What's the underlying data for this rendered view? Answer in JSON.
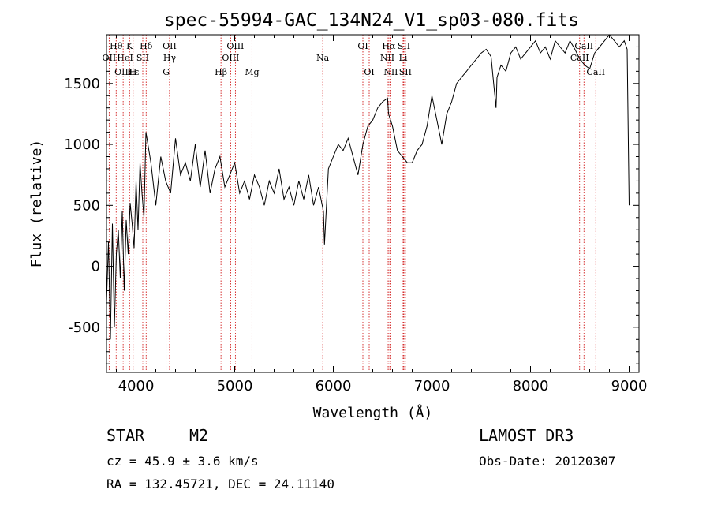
{
  "chart_data": {
    "type": "line",
    "title": "spec-55994-GAC_134N24_V1_sp03-080.fits",
    "xlabel": "Wavelength (Å)",
    "ylabel": "Flux (relative)",
    "xlim": [
      3700,
      9100
    ],
    "ylim": [
      -870,
      1900
    ],
    "xticks": [
      4000,
      5000,
      6000,
      7000,
      8000,
      9000
    ],
    "yticks": [
      -500,
      0,
      500,
      1000,
      1500
    ],
    "series": [
      {
        "name": "flux",
        "x": [
          3700,
          3720,
          3740,
          3760,
          3780,
          3800,
          3820,
          3840,
          3860,
          3880,
          3900,
          3920,
          3940,
          3960,
          3980,
          4000,
          4020,
          4040,
          4060,
          4080,
          4100,
          4150,
          4200,
          4250,
          4300,
          4350,
          4400,
          4450,
          4500,
          4550,
          4600,
          4650,
          4700,
          4750,
          4800,
          4850,
          4900,
          4950,
          5000,
          5050,
          5100,
          5150,
          5200,
          5250,
          5300,
          5350,
          5400,
          5450,
          5500,
          5550,
          5600,
          5650,
          5700,
          5750,
          5800,
          5850,
          5900,
          5910,
          5950,
          6000,
          6050,
          6100,
          6150,
          6200,
          6250,
          6300,
          6350,
          6400,
          6450,
          6500,
          6550,
          6560,
          6600,
          6650,
          6700,
          6750,
          6800,
          6850,
          6900,
          6950,
          7000,
          7050,
          7100,
          7150,
          7200,
          7250,
          7300,
          7350,
          7400,
          7450,
          7500,
          7550,
          7600,
          7620,
          7650,
          7660,
          7700,
          7750,
          7800,
          7850,
          7900,
          7950,
          8000,
          8050,
          8100,
          8150,
          8200,
          8250,
          8300,
          8350,
          8400,
          8450,
          8500,
          8550,
          8600,
          8650,
          8700,
          8750,
          8800,
          8850,
          8900,
          8950,
          8980,
          9000
        ],
        "values": [
          -300,
          200,
          -600,
          350,
          -500,
          100,
          300,
          -100,
          450,
          -200,
          380,
          100,
          520,
          350,
          150,
          700,
          300,
          850,
          600,
          400,
          1100,
          850,
          500,
          900,
          700,
          600,
          1050,
          750,
          850,
          700,
          1000,
          650,
          950,
          600,
          800,
          900,
          650,
          750,
          850,
          600,
          700,
          550,
          750,
          650,
          500,
          700,
          600,
          800,
          550,
          650,
          500,
          700,
          550,
          750,
          500,
          650,
          450,
          180,
          800,
          900,
          1000,
          950,
          1050,
          900,
          750,
          1000,
          1150,
          1200,
          1300,
          1350,
          1380,
          1250,
          1150,
          950,
          900,
          850,
          850,
          950,
          1000,
          1150,
          1400,
          1200,
          1000,
          1250,
          1350,
          1500,
          1550,
          1600,
          1650,
          1700,
          1750,
          1780,
          1720,
          1550,
          1300,
          1550,
          1650,
          1600,
          1750,
          1800,
          1700,
          1750,
          1800,
          1850,
          1750,
          1800,
          1700,
          1850,
          1800,
          1750,
          1850,
          1780,
          1700,
          1650,
          1620,
          1750,
          1800,
          1850,
          1900,
          1850,
          1800,
          1850,
          1780,
          500
        ]
      }
    ],
    "spectral_lines": [
      {
        "label": "Hθ",
        "row": 0,
        "wavelength": 3798
      },
      {
        "label": "K",
        "row": 0,
        "wavelength": 3934
      },
      {
        "label": "Hδ",
        "row": 0,
        "wavelength": 4102
      },
      {
        "label": "OII",
        "row": 0,
        "wavelength": 4340
      },
      {
        "label": "OIII",
        "row": 0,
        "wavelength": 5007
      },
      {
        "label": "OI",
        "row": 0,
        "wavelength": 6300
      },
      {
        "label": "Hα",
        "row": 0,
        "wavelength": 6563
      },
      {
        "label": "SII",
        "row": 0,
        "wavelength": 6716
      },
      {
        "label": "CaII",
        "row": 0,
        "wavelength": 8542
      },
      {
        "label": "OII",
        "row": 1,
        "wavelength": 3727
      },
      {
        "label": "HeI",
        "row": 1,
        "wavelength": 3889
      },
      {
        "label": "SII",
        "row": 1,
        "wavelength": 4068
      },
      {
        "label": "Hγ",
        "row": 1,
        "wavelength": 4340
      },
      {
        "label": "OIII",
        "row": 1,
        "wavelength": 4959
      },
      {
        "label": "Na",
        "row": 1,
        "wavelength": 5893
      },
      {
        "label": "NII",
        "row": 1,
        "wavelength": 6548
      },
      {
        "label": "Li",
        "row": 1,
        "wavelength": 6708
      },
      {
        "label": "CaII",
        "row": 1,
        "wavelength": 8498
      },
      {
        "label": "OIII",
        "row": 2,
        "wavelength": 3869
      },
      {
        "label": "Hε",
        "row": 2,
        "wavelength": 3970
      },
      {
        "label": "H",
        "row": 2,
        "wavelength": 3968
      },
      {
        "label": "G",
        "row": 2,
        "wavelength": 4305
      },
      {
        "label": "Hβ",
        "row": 2,
        "wavelength": 4861
      },
      {
        "label": "Mg",
        "row": 2,
        "wavelength": 5175
      },
      {
        "label": "OI",
        "row": 2,
        "wavelength": 6364
      },
      {
        "label": "NII",
        "row": 2,
        "wavelength": 6583
      },
      {
        "label": "SII",
        "row": 2,
        "wavelength": 6731
      },
      {
        "label": "CaII",
        "row": 2,
        "wavelength": 8662
      }
    ]
  },
  "footer": {
    "class_label": "STAR",
    "subclass": "M2",
    "survey": "LAMOST DR3",
    "cz": "cz = 45.9 ± 3.6 km/s",
    "obs_date": "Obs-Date: 20120307",
    "coords": "RA = 132.45721, DEC =  24.11140"
  },
  "colors": {
    "line": "#000000",
    "marker": "#cc0000"
  }
}
